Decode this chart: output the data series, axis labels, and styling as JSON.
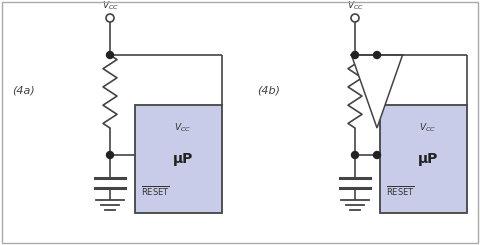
{
  "bg_color": "#ffffff",
  "border_color": "#aaaaaa",
  "box_fill": "#c8cce8",
  "box_border": "#444444",
  "line_color": "#444444",
  "dot_color": "#222222",
  "label_4a": "(4a)",
  "label_4b": "(4b)",
  "mu_p_label": "μP",
  "fig_width": 4.8,
  "fig_height": 2.45,
  "dpi": 100
}
